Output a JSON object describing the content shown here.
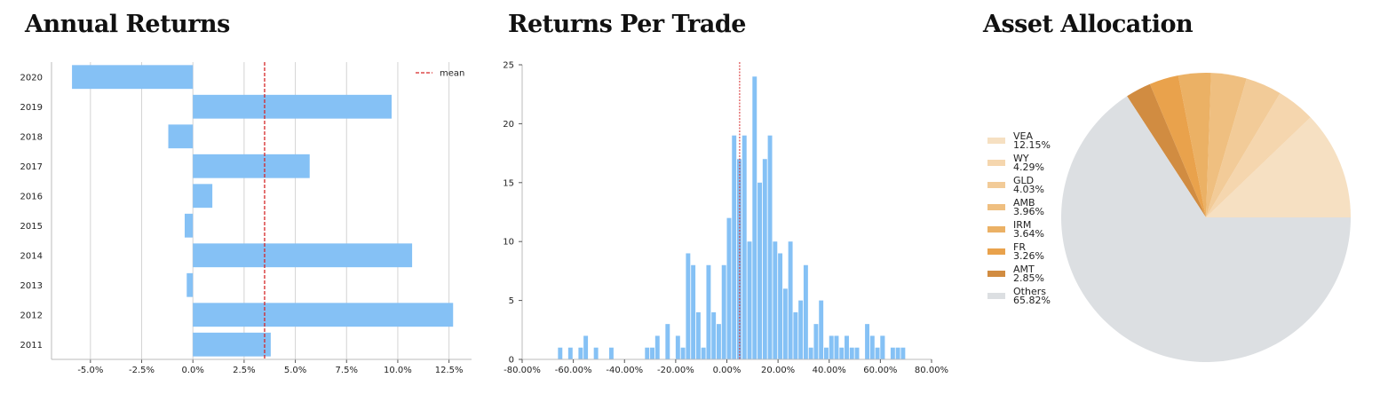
{
  "chart_data": [
    {
      "type": "bar",
      "orientation": "horizontal",
      "title": "Annual Returns",
      "categories": [
        "2020",
        "2019",
        "2018",
        "2017",
        "2016",
        "2015",
        "2014",
        "2013",
        "2012",
        "2011"
      ],
      "values": [
        -5.9,
        9.7,
        -1.2,
        5.7,
        0.95,
        -0.4,
        10.7,
        -0.3,
        12.7,
        3.8
      ],
      "mean": 3.5,
      "legend": [
        "mean"
      ],
      "legend_position": "top-right",
      "xlim": [
        -6.9,
        13.6
      ],
      "xticks": [
        -5.0,
        -2.5,
        0.0,
        2.5,
        5.0,
        7.5,
        10.0,
        12.5
      ],
      "xtick_labels": [
        "-5.0%",
        "-2.5%",
        "0.0%",
        "2.5%",
        "5.0%",
        "7.5%",
        "10.0%",
        "12.5%"
      ],
      "grid": "vertical",
      "bar_color": "#85c1f5",
      "mean_color": "#d62728"
    },
    {
      "type": "histogram",
      "title": "Returns Per Trade",
      "bin_start": -80,
      "bin_width": 2,
      "counts": [
        0,
        0,
        0,
        0,
        0,
        0,
        0,
        1,
        0,
        1,
        0,
        1,
        2,
        0,
        1,
        0,
        0,
        1,
        0,
        0,
        0,
        0,
        0,
        0,
        1,
        1,
        2,
        0,
        3,
        0,
        2,
        1,
        9,
        8,
        4,
        1,
        8,
        4,
        3,
        8,
        12,
        19,
        17,
        19,
        10,
        24,
        15,
        17,
        19,
        10,
        9,
        6,
        10,
        4,
        5,
        8,
        1,
        3,
        5,
        1,
        2,
        2,
        1,
        2,
        1,
        1,
        0,
        3,
        2,
        1,
        2,
        0,
        1,
        1,
        1,
        0,
        0,
        0,
        0,
        0,
        0,
        0,
        0,
        0,
        0,
        0,
        0,
        0,
        0,
        0,
        0,
        0,
        0,
        0
      ],
      "extra_bars": [
        {
          "x": 60,
          "count": 2
        }
      ],
      "mean": 5.0,
      "xlim": [
        -80,
        80
      ],
      "ylim": [
        0,
        25
      ],
      "xticks": [
        -80,
        -60,
        -40,
        -20,
        0,
        20,
        40,
        60,
        80
      ],
      "xtick_labels": [
        "-80.00%",
        "-60.00%",
        "-40.00%",
        "-20.00%",
        "0.00%",
        "20.00%",
        "40.00%",
        "60.00%",
        "80.00%"
      ],
      "yticks": [
        0,
        5,
        10,
        15,
        20,
        25
      ],
      "ytick_labels": [
        "0",
        "5",
        "10",
        "15",
        "20",
        "25"
      ],
      "bar_color": "#85c1f5",
      "mean_color": "#d62728"
    },
    {
      "type": "pie",
      "title": "Asset Allocation",
      "legend_position": "left",
      "slices": [
        {
          "label": "VEA",
          "pct_label": "12.15%",
          "value": 12.15,
          "color": "#f6e0c2"
        },
        {
          "label": "WY",
          "pct_label": "4.29%",
          "value": 4.29,
          "color": "#f5d6ae"
        },
        {
          "label": "GLD",
          "pct_label": "4.03%",
          "value": 4.03,
          "color": "#f2cb98"
        },
        {
          "label": "AMB",
          "pct_label": "3.96%",
          "value": 3.96,
          "color": "#efbf80"
        },
        {
          "label": "IRM",
          "pct_label": "3.64%",
          "value": 3.64,
          "color": "#ebb165"
        },
        {
          "label": "FR",
          "pct_label": "3.26%",
          "value": 3.26,
          "color": "#e9a24c"
        },
        {
          "label": "AMT",
          "pct_label": "2.85%",
          "value": 2.85,
          "color": "#d18c41"
        },
        {
          "label": "Others",
          "pct_label": "65.82%",
          "value": 65.82,
          "color": "#dcdfe2"
        }
      ]
    }
  ]
}
